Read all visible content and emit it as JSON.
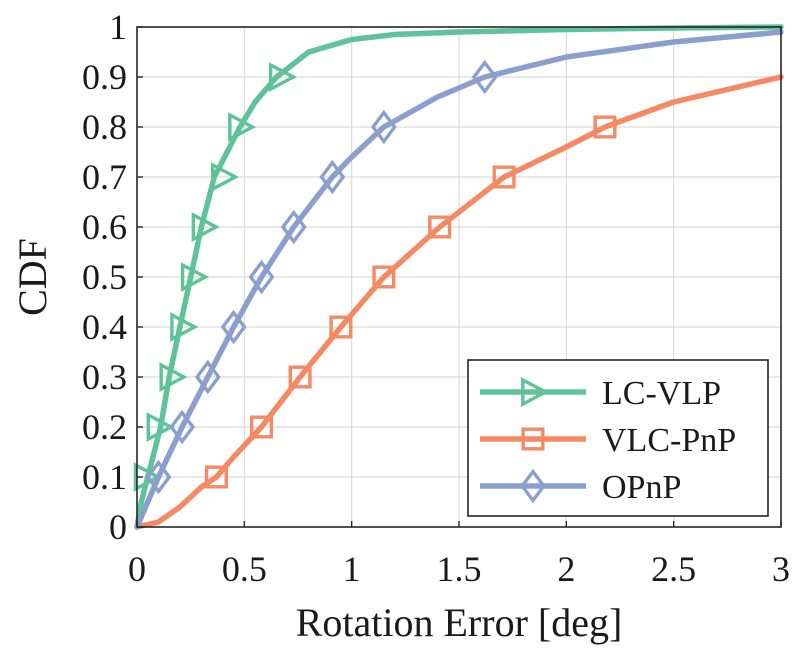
{
  "chart_data": {
    "type": "line",
    "title": "",
    "xlabel": "Rotation Error [deg]",
    "ylabel": "CDF",
    "xlim": [
      0,
      3
    ],
    "ylim": [
      0,
      1
    ],
    "xticks": [
      0,
      0.5,
      1,
      1.5,
      2,
      2.5,
      3
    ],
    "xtick_labels": [
      "0",
      "0.5",
      "1",
      "1.5",
      "2",
      "2.5",
      "3"
    ],
    "yticks": [
      0,
      0.1,
      0.2,
      0.3,
      0.4,
      0.5,
      0.6,
      0.7,
      0.8,
      0.9,
      1
    ],
    "ytick_labels": [
      "0",
      "0.1",
      "0.2",
      "0.3",
      "0.4",
      "0.5",
      "0.6",
      "0.7",
      "0.8",
      "0.9",
      "1"
    ],
    "grid": true,
    "legend_position": "bottom-right",
    "series": [
      {
        "name": "LC-VLP",
        "color": "#5ec39b",
        "marker": "triangle-right",
        "x": [
          0,
          0.02,
          0.05,
          0.08,
          0.11,
          0.15,
          0.2,
          0.25,
          0.3,
          0.36,
          0.42,
          0.48,
          0.55,
          0.65,
          0.8,
          1.0,
          1.2,
          1.5,
          2.0,
          2.5,
          3.0
        ],
        "y": [
          0,
          0.05,
          0.1,
          0.15,
          0.2,
          0.3,
          0.4,
          0.5,
          0.6,
          0.7,
          0.75,
          0.8,
          0.85,
          0.9,
          0.95,
          0.975,
          0.985,
          0.99,
          0.995,
          0.998,
          1.0
        ],
        "markers_x": [
          0.04,
          0.1,
          0.16,
          0.21,
          0.26,
          0.31,
          0.4,
          0.48,
          0.67
        ],
        "markers_y": [
          0.1,
          0.2,
          0.3,
          0.4,
          0.5,
          0.6,
          0.7,
          0.8,
          0.9
        ]
      },
      {
        "name": "VLC-PnP",
        "color": "#f58964",
        "marker": "square",
        "x": [
          0,
          0.1,
          0.2,
          0.3,
          0.37,
          0.45,
          0.58,
          0.76,
          0.95,
          1.15,
          1.41,
          1.71,
          2.0,
          2.18,
          2.5,
          2.8,
          3.0
        ],
        "y": [
          0,
          0.01,
          0.04,
          0.08,
          0.1,
          0.14,
          0.2,
          0.3,
          0.4,
          0.5,
          0.6,
          0.7,
          0.76,
          0.8,
          0.85,
          0.88,
          0.9
        ],
        "markers_x": [
          0.37,
          0.58,
          0.76,
          0.95,
          1.15,
          1.41,
          1.71,
          2.18
        ],
        "markers_y": [
          0.1,
          0.2,
          0.3,
          0.4,
          0.5,
          0.6,
          0.7,
          0.8
        ]
      },
      {
        "name": "OPnP",
        "color": "#8b9fcf",
        "marker": "diamond",
        "x": [
          0,
          0.05,
          0.1,
          0.21,
          0.33,
          0.45,
          0.58,
          0.73,
          0.91,
          1.0,
          1.15,
          1.4,
          1.62,
          2.0,
          2.5,
          3.0
        ],
        "y": [
          0,
          0.05,
          0.1,
          0.2,
          0.3,
          0.4,
          0.5,
          0.6,
          0.7,
          0.74,
          0.8,
          0.86,
          0.9,
          0.94,
          0.97,
          0.99
        ],
        "markers_x": [
          0.1,
          0.21,
          0.33,
          0.45,
          0.58,
          0.73,
          0.91,
          1.15,
          1.62
        ],
        "markers_y": [
          0.1,
          0.2,
          0.3,
          0.4,
          0.5,
          0.6,
          0.7,
          0.8,
          0.9
        ]
      }
    ]
  }
}
